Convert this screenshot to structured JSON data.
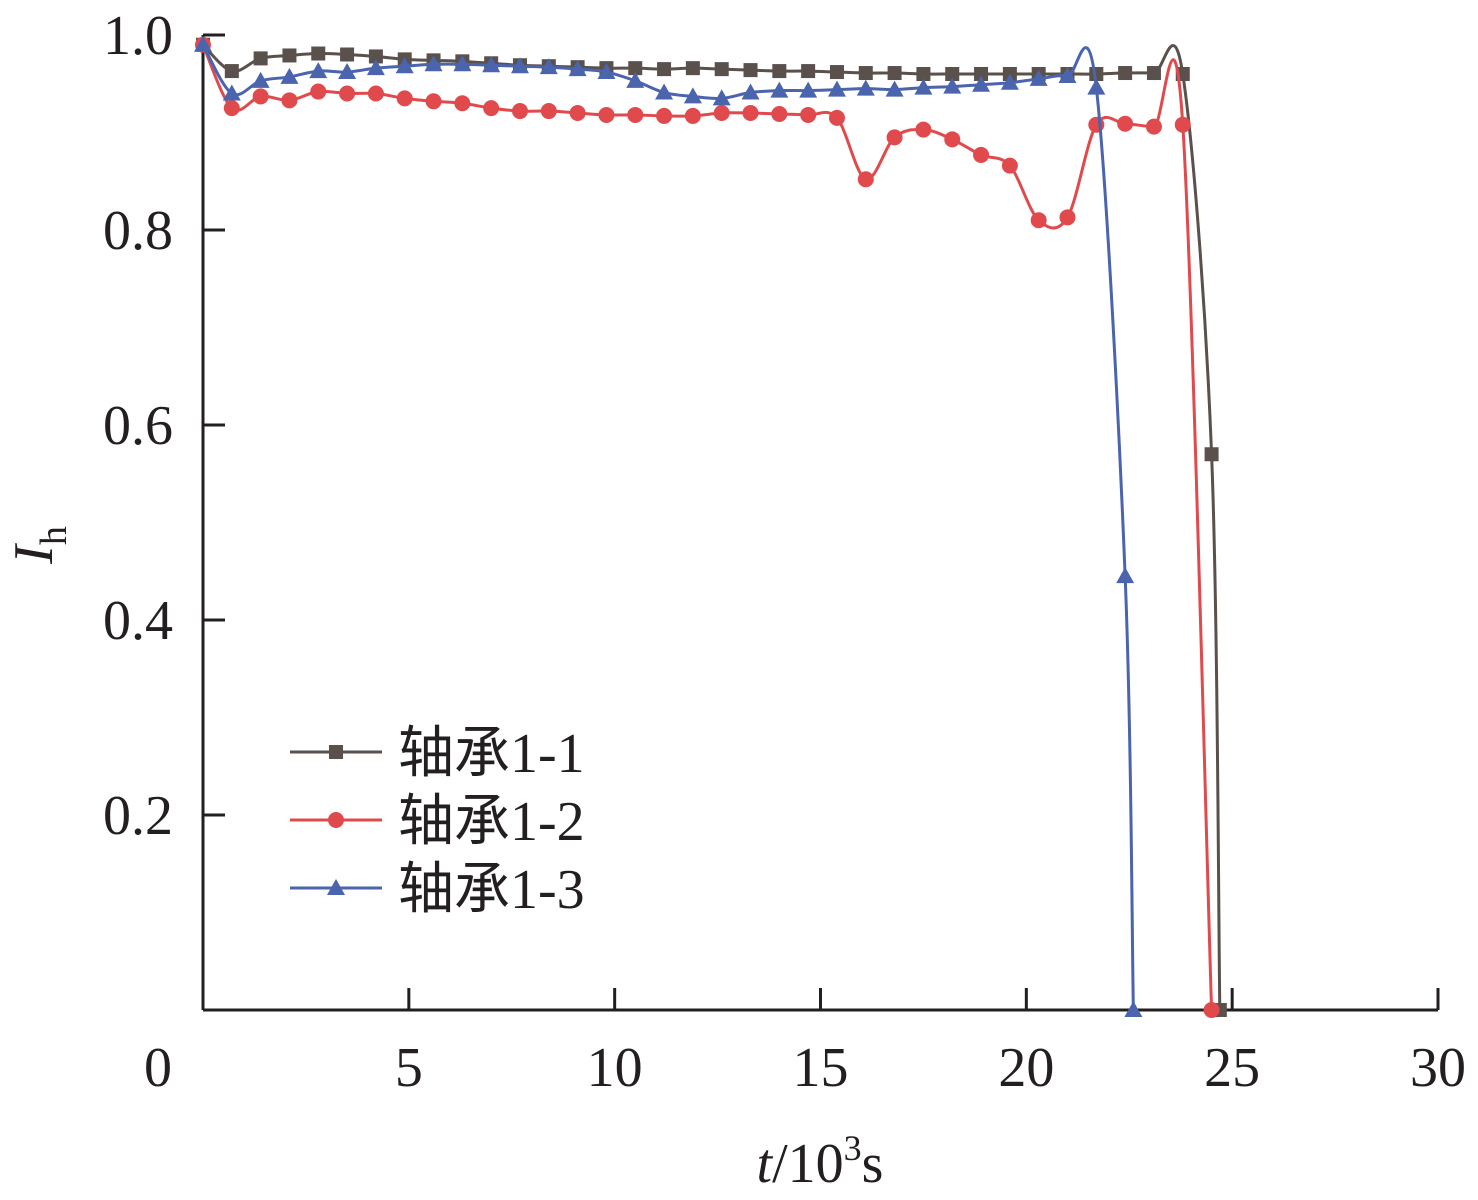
{
  "chart_data": {
    "type": "line",
    "xlabel": {
      "italic": "t",
      "main": "/10",
      "sup": "3",
      "unit": "s"
    },
    "ylabel": {
      "main": "I",
      "sub": "h"
    },
    "xlim": [
      0,
      30
    ],
    "ylim": [
      0,
      1.0
    ],
    "xticks": [
      0,
      5,
      10,
      15,
      20,
      25,
      30
    ],
    "xtick_labels": [
      "0",
      "5",
      "10",
      "15",
      "20",
      "25",
      "30"
    ],
    "yticks": [
      0.2,
      0.4,
      0.6,
      0.8,
      1.0
    ],
    "ytick_labels": [
      "0.2",
      "0.4",
      "0.6",
      "0.8",
      "1.0"
    ],
    "grid": false,
    "legend_position": "bottom-left",
    "series": [
      {
        "name": "轴承1-1",
        "color": "#5a504c",
        "marker": "square",
        "x": [
          0,
          0.7,
          1.4,
          2.1,
          2.8,
          3.5,
          4.2,
          4.9,
          5.6,
          6.3,
          7.0,
          7.7,
          8.4,
          9.1,
          9.8,
          10.5,
          11.2,
          11.9,
          12.6,
          13.3,
          14.0,
          14.7,
          15.4,
          16.1,
          16.8,
          17.5,
          18.2,
          18.9,
          19.6,
          20.3,
          21.0,
          21.7,
          22.4,
          23.1,
          23.8,
          24.5,
          24.7
        ],
        "y": [
          0.99,
          0.963,
          0.976,
          0.979,
          0.981,
          0.98,
          0.978,
          0.975,
          0.974,
          0.973,
          0.971,
          0.969,
          0.968,
          0.967,
          0.966,
          0.966,
          0.965,
          0.966,
          0.965,
          0.964,
          0.963,
          0.963,
          0.962,
          0.961,
          0.961,
          0.96,
          0.96,
          0.96,
          0.96,
          0.96,
          0.96,
          0.96,
          0.961,
          0.961,
          0.96,
          0.57,
          0.0
        ]
      },
      {
        "name": "轴承1-2",
        "color": "#e04a4d",
        "marker": "circle",
        "x": [
          0,
          0.7,
          1.4,
          2.1,
          2.8,
          3.5,
          4.2,
          4.9,
          5.6,
          6.3,
          7.0,
          7.7,
          8.4,
          9.1,
          9.8,
          10.5,
          11.2,
          11.9,
          12.6,
          13.3,
          14.0,
          14.7,
          15.4,
          16.1,
          16.8,
          17.5,
          18.2,
          18.9,
          19.6,
          20.3,
          21.0,
          21.7,
          22.4,
          23.1,
          23.8,
          24.5
        ],
        "y": [
          0.99,
          0.925,
          0.937,
          0.933,
          0.942,
          0.94,
          0.94,
          0.935,
          0.932,
          0.93,
          0.925,
          0.922,
          0.922,
          0.92,
          0.918,
          0.918,
          0.917,
          0.917,
          0.92,
          0.92,
          0.919,
          0.918,
          0.915,
          0.852,
          0.895,
          0.903,
          0.893,
          0.877,
          0.866,
          0.81,
          0.813,
          0.908,
          0.909,
          0.906,
          0.908,
          0.0
        ]
      },
      {
        "name": "轴承1-3",
        "color": "#4a64ad",
        "marker": "triangle",
        "x": [
          0,
          0.7,
          1.4,
          2.1,
          2.8,
          3.5,
          4.2,
          4.9,
          5.6,
          6.3,
          7.0,
          7.7,
          8.4,
          9.1,
          9.8,
          10.5,
          11.2,
          11.9,
          12.6,
          13.3,
          14.0,
          14.7,
          15.4,
          16.1,
          16.8,
          17.5,
          18.2,
          18.9,
          19.6,
          20.3,
          21.0,
          21.7,
          22.4,
          22.6
        ],
        "y": [
          0.99,
          0.94,
          0.953,
          0.957,
          0.963,
          0.962,
          0.966,
          0.968,
          0.97,
          0.97,
          0.969,
          0.968,
          0.967,
          0.965,
          0.962,
          0.953,
          0.941,
          0.937,
          0.935,
          0.941,
          0.943,
          0.943,
          0.944,
          0.945,
          0.944,
          0.946,
          0.947,
          0.949,
          0.951,
          0.955,
          0.958,
          0.946,
          0.445,
          0.0
        ]
      }
    ]
  }
}
